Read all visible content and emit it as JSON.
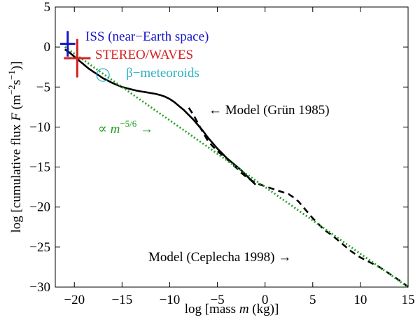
{
  "chart_data": {
    "type": "line",
    "xlabel": {
      "prefix": "log [mass ",
      "var": "m",
      "suffix": " (kg)]"
    },
    "ylabel": {
      "prefix": "log [cumulative flux  ",
      "var": "F",
      "units_open": "  (m",
      "exp1": "−2",
      "mid": "s",
      "exp2": "−1",
      "close": ")]"
    },
    "xlim": [
      -22,
      15
    ],
    "ylim": [
      -30,
      5
    ],
    "xticks": [
      -20,
      -15,
      -10,
      -5,
      0,
      5,
      10,
      15
    ],
    "yticks": [
      5,
      0,
      -5,
      -10,
      -15,
      -20,
      -25,
      -30
    ],
    "grid": false,
    "series": [
      {
        "name": "Model (Grün 1985)",
        "style": "solid",
        "color": "#000000",
        "x": [
          -21,
          -20.5,
          -20,
          -19.5,
          -19,
          -18.5,
          -18,
          -17.5,
          -17,
          -16.5,
          -16,
          -15.5,
          -15,
          -14.5,
          -14,
          -13.5,
          -13,
          -12.5,
          -12,
          -11.5,
          -11,
          -10.5,
          -10,
          -9.5,
          -9,
          -8.5,
          -8,
          -7.5,
          -7,
          -6.5,
          -6,
          -5.5,
          -5,
          -4.5,
          -4,
          -3.5,
          -3,
          -2.5,
          -2,
          -1.5,
          -1
        ],
        "y": [
          -0.3,
          -0.7,
          -1.2,
          -1.7,
          -2.2,
          -2.7,
          -3.1,
          -3.5,
          -3.9,
          -4.2,
          -4.5,
          -4.75,
          -5.0,
          -5.15,
          -5.3,
          -5.45,
          -5.55,
          -5.65,
          -5.75,
          -5.85,
          -6.0,
          -6.2,
          -6.5,
          -6.9,
          -7.4,
          -7.9,
          -8.5,
          -9.1,
          -9.8,
          -10.5,
          -11.3,
          -12.0,
          -12.7,
          -13.3,
          -13.9,
          -14.4,
          -14.9,
          -15.4,
          -16.0,
          -16.6,
          -17.2
        ]
      },
      {
        "name": "Model (Ceplecha 1998)",
        "style": "dashed",
        "color": "#000000",
        "x": [
          -8,
          -7.5,
          -7,
          -6.5,
          -6,
          -5.5,
          -5,
          -4.5,
          -4,
          -3.5,
          -3,
          -2.5,
          -2,
          -1.5,
          -1,
          -0.5,
          0,
          0.5,
          1,
          1.5,
          2,
          2.5,
          3,
          3.5,
          4,
          4.5,
          5,
          5.5,
          6,
          6.5,
          7,
          7.5,
          8,
          8.5,
          9,
          9.5,
          10,
          10.5,
          11,
          11.5,
          12,
          12.5,
          13,
          13.5,
          14,
          14.5,
          15
        ],
        "y": [
          -7.6,
          -8.5,
          -9.6,
          -10.7,
          -11.7,
          -12.4,
          -13.0,
          -13.5,
          -14.0,
          -14.6,
          -15.1,
          -15.7,
          -16.2,
          -16.6,
          -17.0,
          -17.2,
          -17.4,
          -17.6,
          -17.8,
          -18.0,
          -18.2,
          -18.4,
          -18.8,
          -19.3,
          -20.0,
          -20.7,
          -21.4,
          -22.0,
          -22.6,
          -23.1,
          -23.5,
          -24.0,
          -24.5,
          -25.0,
          -25.5,
          -25.9,
          -26.3,
          -26.6,
          -26.9,
          -27.2,
          -27.5,
          -27.9,
          -28.3,
          -28.7,
          -29.1,
          -29.5,
          -30.0
        ]
      },
      {
        "name": "∝ m^−5/6",
        "style": "dotted",
        "color": "#23a023",
        "x": [
          -21,
          15
        ],
        "y": [
          0,
          -30
        ]
      }
    ],
    "markers": [
      {
        "name": "ISS (near−Earth space)",
        "type": "plus",
        "color": "#1515c8",
        "x": -20.7,
        "y": 0.4,
        "half_dx": 0.8,
        "half_dy": 1.6,
        "label": "ISS (near−Earth space)"
      },
      {
        "name": "STEREO/WAVES",
        "type": "plus",
        "color": "#d42020",
        "x": -19.7,
        "y": -1.4,
        "half_dx": 1.4,
        "half_dy": 2.4,
        "label": "STEREO/WAVES"
      },
      {
        "name": "β−meteoroids",
        "type": "circle",
        "color": "#2ab0c0",
        "x": -17,
        "y": -3.5,
        "label": "β−meteoroids"
      }
    ],
    "annotations": {
      "grun": "← Model (Grün 1985)",
      "ceplecha": "Model (Ceplecha 1998) →",
      "power_prefix": "∝ ",
      "power_var": "m",
      "power_exp": "−5/6",
      "power_arrow": " →"
    }
  }
}
